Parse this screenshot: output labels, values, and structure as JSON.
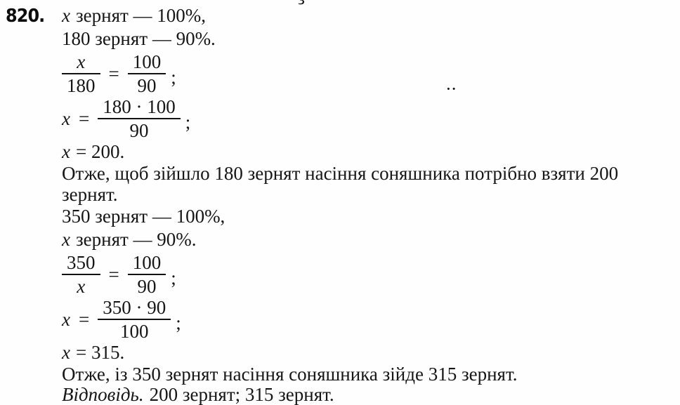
{
  "problem_number": "820.",
  "artifacts": {
    "top_glyph": "з",
    "dots": ".."
  },
  "s": {
    "given1a_var": "x",
    "given1a_rest": "зернят — 100%,",
    "given1b": "180 зернят — 90%.",
    "prop1": {
      "lhs_num": "x",
      "lhs_den": "180",
      "eq": "=",
      "rhs_num": "100",
      "rhs_den": "90",
      "end": ";"
    },
    "solve1": {
      "var": "x",
      "eq": "=",
      "num": "180 · 100",
      "den": "90",
      "end": ";"
    },
    "result1_var": "x",
    "result1_rest": "= 200.",
    "concl1a": "Отже, щоб зійшло 180 зернят насіння соняшника потрібно взяти 200",
    "concl1b": "зернят.",
    "given2a": "350 зернят — 100%,",
    "given2b_var": "x",
    "given2b_rest": "зернят — 90%.",
    "prop2": {
      "lhs_num": "350",
      "lhs_den": "x",
      "eq": "=",
      "rhs_num": "100",
      "rhs_den": "90",
      "end": ";"
    },
    "solve2": {
      "var": "x",
      "eq": "=",
      "num": "350 · 90",
      "den": "100",
      "end": ";"
    },
    "result2_var": "x",
    "result2_rest": "= 315.",
    "concl2": "Отже, із 350 зернят насіння соняшника зійде 315 зернят.",
    "answer_label": "Відповідь.",
    "answer_text": "200 зернят; 315 зернят."
  }
}
